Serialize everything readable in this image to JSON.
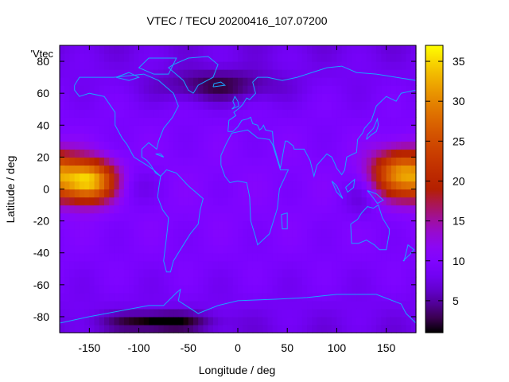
{
  "chart_data": {
    "type": "heatmap",
    "title": "VTEC / TECU 20200416_107.07200",
    "xlabel": "Longitude / deg",
    "ylabel": "Latitude / deg",
    "xlim": [
      -180,
      180
    ],
    "ylim": [
      -90,
      90
    ],
    "xticks": [
      -150,
      -100,
      -50,
      0,
      50,
      100,
      150
    ],
    "yticks": [
      80,
      60,
      40,
      20,
      0,
      -20,
      -40,
      -60,
      -80
    ],
    "colorbar": {
      "min": 1,
      "max": 37,
      "ticks": [
        5,
        10,
        15,
        20,
        25,
        30,
        35
      ]
    },
    "series_key": "'Vtec",
    "coastline_color": "#1aa3ff",
    "features": [
      {
        "name": "pacific-equatorial-peak",
        "lon": -150,
        "lat": 5,
        "value": 34,
        "lon_spread": 28,
        "lat_spread": 13
      },
      {
        "name": "west-pacific-peak",
        "lon": 165,
        "lat": 10,
        "value": 30,
        "lon_spread": 30,
        "lat_spread": 15
      },
      {
        "name": "east-pacific-arm",
        "lon": -110,
        "lat": 2,
        "value": 7,
        "lon_spread": 25,
        "lat_spread": 12
      },
      {
        "name": "indonesia-arm",
        "lon": 125,
        "lat": -5,
        "value": 7,
        "lon_spread": 20,
        "lat_spread": 14
      },
      {
        "name": "arctic-low",
        "lon": -20,
        "lat": 65,
        "value": -6,
        "lon_spread": 60,
        "lat_spread": 10
      },
      {
        "name": "antarctic-low",
        "lon": -80,
        "lat": -83,
        "value": -8,
        "lon_spread": 50,
        "lat_spread": 6
      }
    ],
    "background_value": 10
  }
}
